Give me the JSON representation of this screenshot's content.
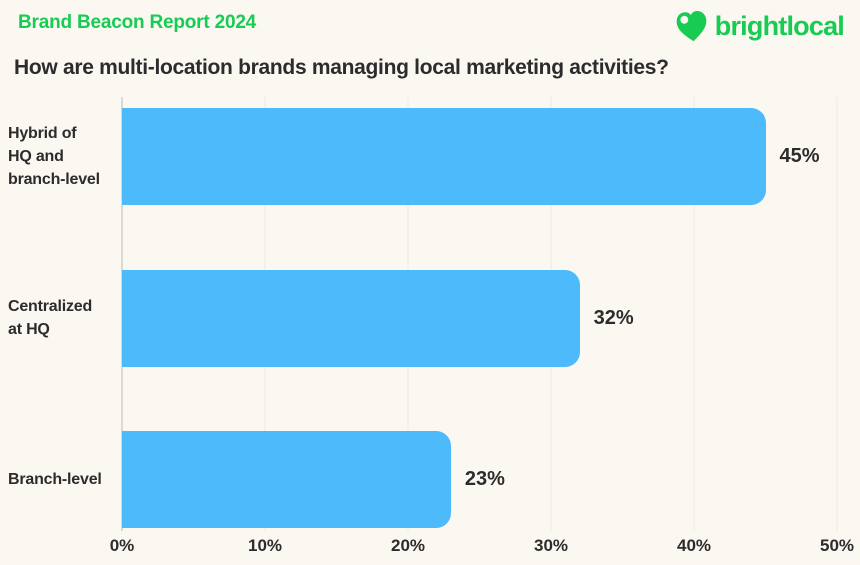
{
  "header": {
    "report_label": "Brand Beacon Report 2024",
    "logo_text": "brightlocal"
  },
  "title": "How are multi-location brands managing local marketing activities?",
  "chart_data": {
    "type": "bar",
    "orientation": "horizontal",
    "title": "How are multi-location brands managing local marketing activities?",
    "categories": [
      "Hybrid of HQ and branch-level",
      "Centralized at HQ",
      "Branch-level"
    ],
    "category_lines": [
      [
        "Hybrid of",
        "HQ and",
        "branch-level"
      ],
      [
        "Centralized",
        "at HQ"
      ],
      [
        "Branch-level"
      ]
    ],
    "values": [
      45,
      32,
      23
    ],
    "value_labels": [
      "45%",
      "32%",
      "23%"
    ],
    "x_ticks": [
      "0%",
      "10%",
      "20%",
      "30%",
      "40%",
      "50%"
    ],
    "x_tick_values": [
      0,
      10,
      20,
      30,
      40,
      50
    ],
    "xlim": [
      0,
      50
    ],
    "grid": true,
    "legend": "none",
    "xlabel": "",
    "ylabel": ""
  },
  "colors": {
    "background": "#FAF8F0",
    "accent_green": "#17CB53",
    "bar_blue": "#4DBAFB",
    "text_dark": "#2E2B2E",
    "gridline": "#ECEAE1",
    "axis_line": "#DCDAD0"
  }
}
